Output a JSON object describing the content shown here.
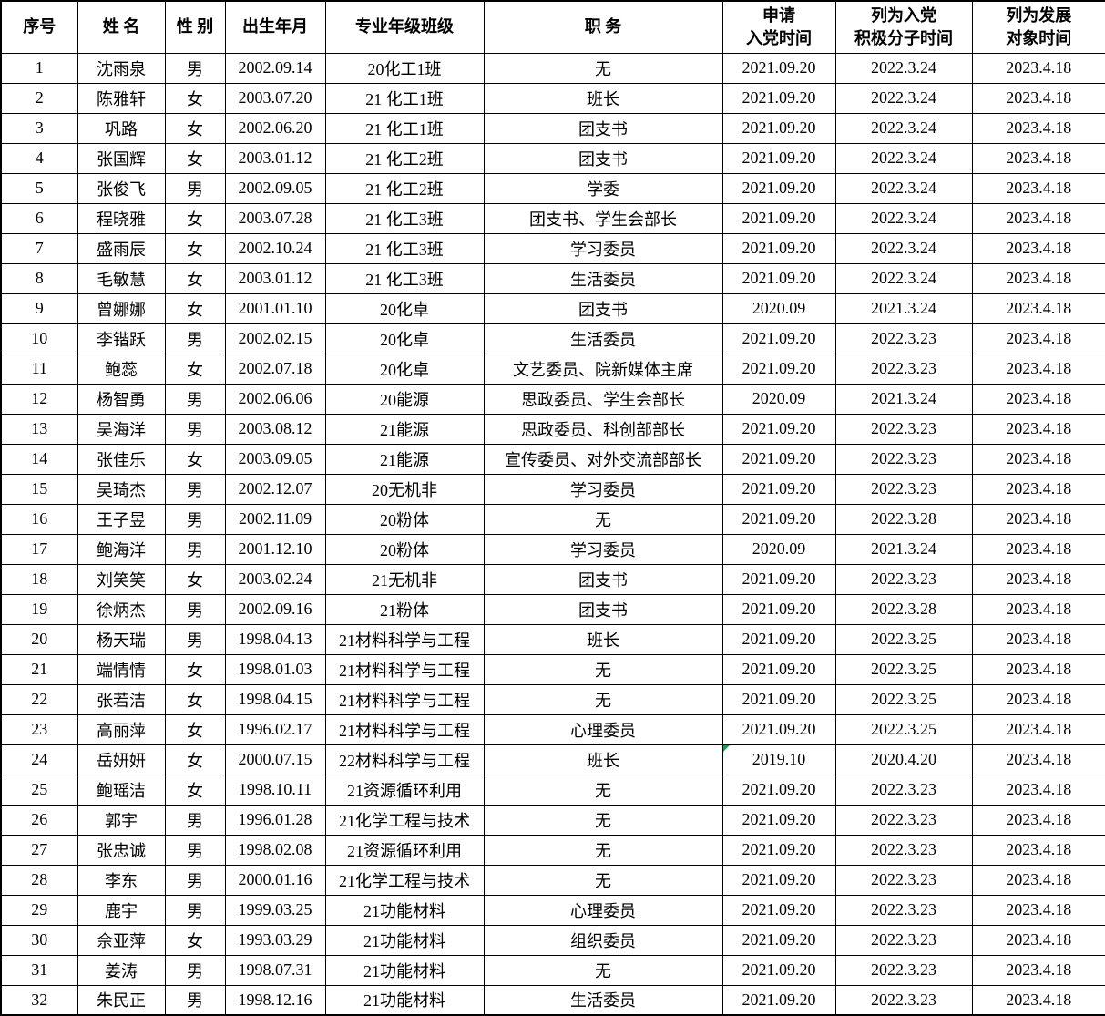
{
  "colors": {
    "background": "#ffffff",
    "border": "#000000",
    "text": "#000000",
    "flag_green": "#1e9e50"
  },
  "table": {
    "columns": [
      {
        "key": "index",
        "label": "序号"
      },
      {
        "key": "name",
        "label": "姓 名"
      },
      {
        "key": "gender",
        "label": "性 别"
      },
      {
        "key": "birth_date",
        "label": "出生年月"
      },
      {
        "key": "class",
        "label": "专业年级班级"
      },
      {
        "key": "position",
        "label": "职  务"
      },
      {
        "key": "apply_date",
        "label": "申请\n入党时间"
      },
      {
        "key": "activist_date",
        "label": "列为入党\n积极分子时间"
      },
      {
        "key": "development_date",
        "label": "列为发展\n对象时间"
      }
    ],
    "rows": [
      [
        "1",
        "沈雨泉",
        "男",
        "2002.09.14",
        "20化工1班",
        "无",
        "2021.09.20",
        "2022.3.24",
        "2023.4.18"
      ],
      [
        "2",
        "陈雅轩",
        "女",
        "2003.07.20",
        "21 化工1班",
        "班长",
        "2021.09.20",
        "2022.3.24",
        "2023.4.18"
      ],
      [
        "3",
        "巩路",
        "女",
        "2002.06.20",
        "21 化工1班",
        "团支书",
        "2021.09.20",
        "2022.3.24",
        "2023.4.18"
      ],
      [
        "4",
        "张国辉",
        "女",
        "2003.01.12",
        "21 化工2班",
        "团支书",
        "2021.09.20",
        "2022.3.24",
        "2023.4.18"
      ],
      [
        "5",
        "张俊飞",
        "男",
        "2002.09.05",
        "21 化工2班",
        "学委",
        "2021.09.20",
        "2022.3.24",
        "2023.4.18"
      ],
      [
        "6",
        "程晓雅",
        "女",
        "2003.07.28",
        "21 化工3班",
        "团支书、学生会部长",
        "2021.09.20",
        "2022.3.24",
        "2023.4.18"
      ],
      [
        "7",
        "盛雨辰",
        "女",
        "2002.10.24",
        "21 化工3班",
        "学习委员",
        "2021.09.20",
        "2022.3.24",
        "2023.4.18"
      ],
      [
        "8",
        "毛敏慧",
        "女",
        "2003.01.12",
        "21 化工3班",
        "生活委员",
        "2021.09.20",
        "2022.3.24",
        "2023.4.18"
      ],
      [
        "9",
        "曾娜娜",
        "女",
        "2001.01.10",
        "20化卓",
        "团支书",
        "2020.09",
        "2021.3.24",
        "2023.4.18"
      ],
      [
        "10",
        "李锴跃",
        "男",
        "2002.02.15",
        "20化卓",
        "生活委员",
        "2021.09.20",
        "2022.3.23",
        "2023.4.18"
      ],
      [
        "11",
        "鲍蕊",
        "女",
        "2002.07.18",
        "20化卓",
        "文艺委员、院新媒体主席",
        "2021.09.20",
        "2022.3.23",
        "2023.4.18"
      ],
      [
        "12",
        "杨智勇",
        "男",
        "2002.06.06",
        "20能源",
        "思政委员、学生会部长",
        "2020.09",
        "2021.3.24",
        "2023.4.18"
      ],
      [
        "13",
        "吴海洋",
        "男",
        "2003.08.12",
        "21能源",
        "思政委员、科创部部长",
        "2021.09.20",
        "2022.3.23",
        "2023.4.18"
      ],
      [
        "14",
        "张佳乐",
        "女",
        "2003.09.05",
        "21能源",
        "宣传委员、对外交流部部长",
        "2021.09.20",
        "2022.3.23",
        "2023.4.18"
      ],
      [
        "15",
        "吴琦杰",
        "男",
        "2002.12.07",
        "20无机非",
        "学习委员",
        "2021.09.20",
        "2022.3.23",
        "2023.4.18"
      ],
      [
        "16",
        "王子昱",
        "男",
        "2002.11.09",
        "20粉体",
        "无",
        "2021.09.20",
        "2022.3.28",
        "2023.4.18"
      ],
      [
        "17",
        "鲍海洋",
        "男",
        "2001.12.10",
        "20粉体",
        "学习委员",
        "2020.09",
        "2021.3.24",
        "2023.4.18"
      ],
      [
        "18",
        "刘笑笑",
        "女",
        "2003.02.24",
        "21无机非",
        "团支书",
        "2021.09.20",
        "2022.3.23",
        "2023.4.18"
      ],
      [
        "19",
        "徐炳杰",
        "男",
        "2002.09.16",
        "21粉体",
        "团支书",
        "2021.09.20",
        "2022.3.28",
        "2023.4.18"
      ],
      [
        "20",
        "杨天瑞",
        "男",
        "1998.04.13",
        "21材料科学与工程",
        "班长",
        "2021.09.20",
        "2022.3.25",
        "2023.4.18"
      ],
      [
        "21",
        "端情情",
        "女",
        "1998.01.03",
        "21材料科学与工程",
        "无",
        "2021.09.20",
        "2022.3.25",
        "2023.4.18"
      ],
      [
        "22",
        "张若洁",
        "女",
        "1998.04.15",
        "21材料科学与工程",
        "无",
        "2021.09.20",
        "2022.3.25",
        "2023.4.18"
      ],
      [
        "23",
        "高丽萍",
        "女",
        "1996.02.17",
        "21材料科学与工程",
        "心理委员",
        "2021.09.20",
        "2022.3.25",
        "2023.4.18"
      ],
      [
        "24",
        "岳妍妍",
        "女",
        "2000.07.15",
        "22材料科学与工程",
        "班长",
        "2019.10",
        "2020.4.20",
        "2023.4.18"
      ],
      [
        "25",
        "鲍瑶洁",
        "女",
        "1998.10.11",
        "21资源循环利用",
        "无",
        "2021.09.20",
        "2022.3.23",
        "2023.4.18"
      ],
      [
        "26",
        "郭宇",
        "男",
        "1996.01.28",
        "21化学工程与技术",
        "无",
        "2021.09.20",
        "2022.3.23",
        "2023.4.18"
      ],
      [
        "27",
        "张忠诚",
        "男",
        "1998.02.08",
        "21资源循环利用",
        "无",
        "2021.09.20",
        "2022.3.23",
        "2023.4.18"
      ],
      [
        "28",
        "李东",
        "男",
        "2000.01.16",
        "21化学工程与技术",
        "无",
        "2021.09.20",
        "2022.3.23",
        "2023.4.18"
      ],
      [
        "29",
        "鹿宇",
        "男",
        "1999.03.25",
        "21功能材料",
        "心理委员",
        "2021.09.20",
        "2022.3.23",
        "2023.4.18"
      ],
      [
        "30",
        "佘亚萍",
        "女",
        "1993.03.29",
        "21功能材料",
        "组织委员",
        "2021.09.20",
        "2022.3.23",
        "2023.4.18"
      ],
      [
        "31",
        "姜涛",
        "男",
        "1998.07.31",
        "21功能材料",
        "无",
        "2021.09.20",
        "2022.3.23",
        "2023.4.18"
      ],
      [
        "32",
        "朱民正",
        "男",
        "1998.12.16",
        "21功能材料",
        "生活委员",
        "2021.09.20",
        "2022.3.23",
        "2023.4.18"
      ]
    ]
  },
  "annotations": {
    "cell_flag": {
      "row": 24,
      "column_index": 6,
      "shape": "corner-triangle",
      "color": "#1e9e50"
    }
  }
}
